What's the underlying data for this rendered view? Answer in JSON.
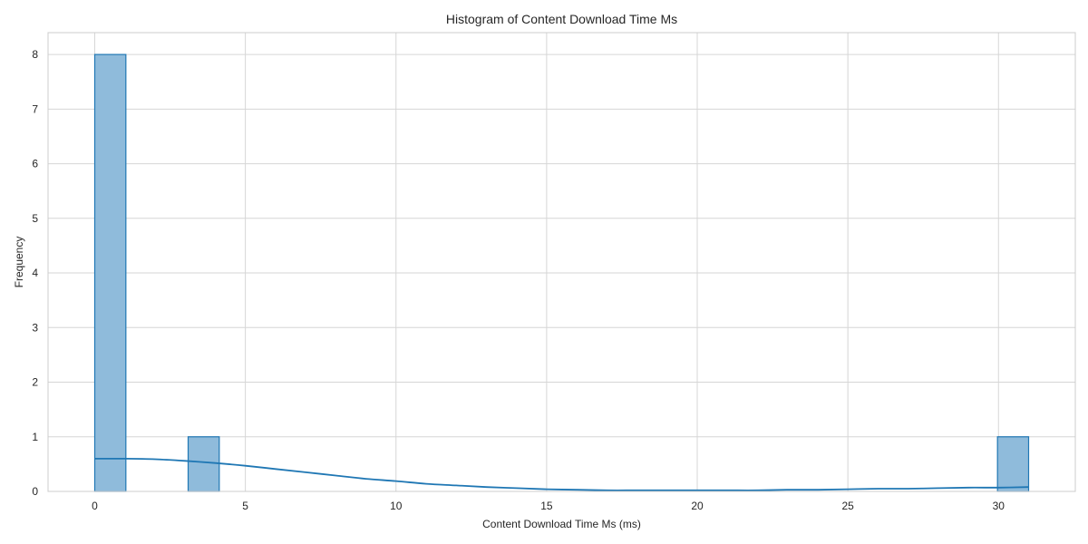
{
  "chart_data": {
    "type": "bar",
    "title": "Histogram of Content Download Time Ms",
    "xlabel": "Content Download Time Ms (ms)",
    "ylabel": "Frequency",
    "xlim": [
      -1.55,
      32.55
    ],
    "ylim": [
      0,
      8.4
    ],
    "xticks": [
      0,
      5,
      10,
      15,
      20,
      25,
      30
    ],
    "yticks": [
      0,
      1,
      2,
      3,
      4,
      5,
      6,
      7,
      8
    ],
    "grid": true,
    "bin_width": 1.033,
    "bins": [
      {
        "start": 0.0,
        "end": 1.033,
        "count": 8
      },
      {
        "start": 3.1,
        "end": 4.133,
        "count": 1
      },
      {
        "start": 29.967,
        "end": 31.0,
        "count": 1
      }
    ],
    "kde": {
      "x": [
        0,
        1,
        2,
        3,
        4,
        5,
        6,
        7,
        8,
        9,
        10,
        11,
        12,
        13,
        14,
        15,
        16,
        17,
        18,
        19,
        20,
        21,
        22,
        23,
        24,
        25,
        26,
        27,
        28,
        29,
        30,
        31
      ],
      "y": [
        0.6,
        0.6,
        0.59,
        0.56,
        0.52,
        0.47,
        0.41,
        0.35,
        0.29,
        0.23,
        0.19,
        0.14,
        0.11,
        0.08,
        0.06,
        0.04,
        0.03,
        0.02,
        0.02,
        0.02,
        0.02,
        0.02,
        0.02,
        0.03,
        0.03,
        0.04,
        0.05,
        0.05,
        0.06,
        0.07,
        0.07,
        0.08
      ]
    },
    "colors": {
      "bar_fill": "#8fbbdb",
      "bar_edge": "#1f77b4",
      "kde_line": "#1f77b4",
      "grid": "#d6d6d6",
      "frame": "#cccccc"
    }
  }
}
